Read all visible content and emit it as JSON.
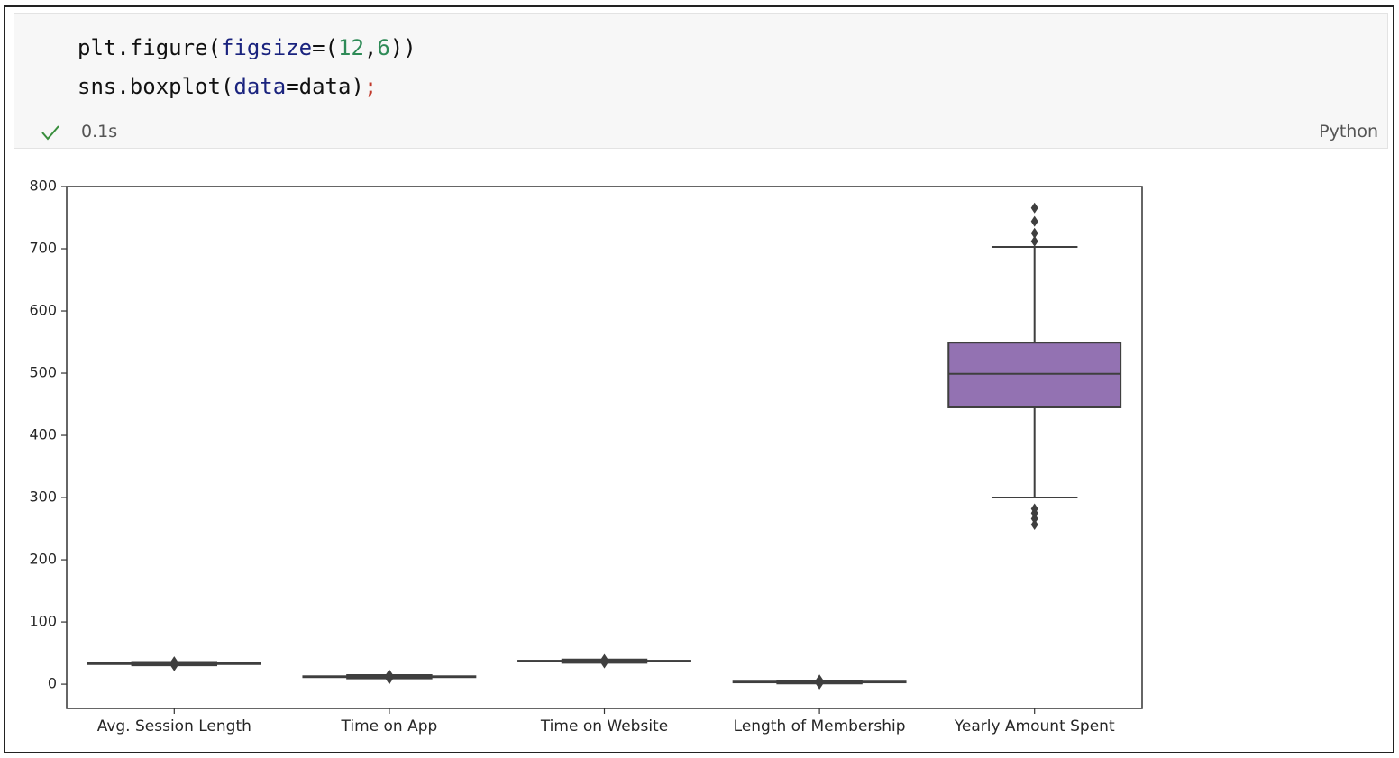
{
  "cell": {
    "code": [
      [
        "plt.figure(",
        "figsize",
        "=(",
        "12",
        ",",
        "6",
        "))"
      ],
      [
        "sns.boxplot(",
        "data",
        "=data)",
        ";"
      ]
    ],
    "duration": "0.1s",
    "language": "Python"
  },
  "chart_data": {
    "type": "box",
    "categories": [
      "Avg. Session Length",
      "Time on App",
      "Time on Website",
      "Length of Membership",
      "Yearly Amount Spent"
    ],
    "boxes": [
      {
        "color": "#3274a1",
        "whislo": 30.4,
        "q1": 32.34,
        "med": 33.08,
        "q3": 33.71,
        "whishi": 35.7,
        "fliers": [
          29.53,
          29.96,
          35.86,
          36.14
        ]
      },
      {
        "color": "#e1812c",
        "whislo": 9.4,
        "q1": 11.39,
        "med": 11.98,
        "q3": 12.75,
        "whishi": 14.7,
        "fliers": [
          8.51,
          8.67,
          15.13
        ]
      },
      {
        "color": "#3a923a",
        "whislo": 34.4,
        "q1": 36.35,
        "med": 37.07,
        "q3": 37.72,
        "whishi": 39.6,
        "fliers": [
          33.91,
          40.01
        ]
      },
      {
        "color": "#c03d3e",
        "whislo": 1.2,
        "q1": 2.93,
        "med": 3.53,
        "q3": 4.13,
        "whishi": 5.9,
        "fliers": [
          0.27,
          0.79,
          6.4,
          6.92
        ]
      },
      {
        "color": "#9372b2",
        "whislo": 300,
        "q1": 445,
        "med": 499,
        "q3": 549,
        "whishi": 703,
        "fliers": [
          256.67,
          266,
          275,
          282,
          712,
          725,
          744,
          765.52
        ]
      }
    ],
    "ylim": [
      -39,
      800
    ],
    "yticks": [
      0,
      100,
      200,
      300,
      400,
      500,
      600,
      700,
      800
    ]
  }
}
